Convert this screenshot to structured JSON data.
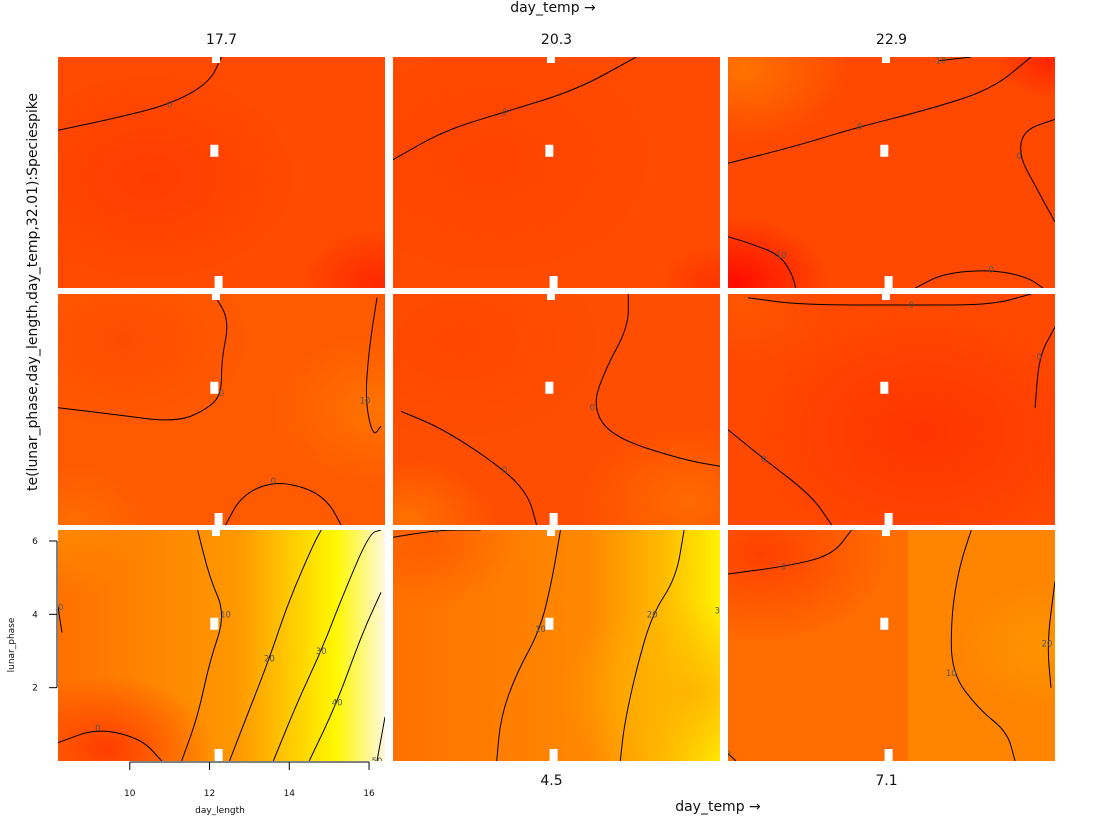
{
  "chart_data": {
    "type": "heatmap",
    "layout": {
      "rows": 3,
      "cols": 3
    },
    "top_axis_label": "day_temp",
    "bottom_axis_label": "day_temp",
    "ylabel_outer": "te(lunar_phase,day_length,day_temp,32.01):Speciespike",
    "top_panel_labels": [
      "17.7",
      "20.3",
      "22.9"
    ],
    "bottom_panel_labels": [
      "",
      "4.5",
      "7.1"
    ],
    "xlabel": "day_length",
    "ylabel": "lunar_phase",
    "xlim": [
      8.2,
      16.4
    ],
    "ylim": [
      0,
      6.3
    ],
    "x_ticks": [
      "10",
      "12",
      "14",
      "16"
    ],
    "y_ticks": [
      "2",
      "4",
      "6"
    ],
    "color_scale": [
      "#ff0000",
      "#ff4a00",
      "#ff8c00",
      "#ffc800",
      "#ffff00",
      "#ffffe0"
    ],
    "panels": [
      {
        "contours": [
          {
            "label": "0",
            "points": [
              [
                8.2,
                4.3
              ],
              [
                9.5,
                4.6
              ],
              [
                11,
                5
              ],
              [
                12,
                5.6
              ],
              [
                12.3,
                6.3
              ]
            ]
          }
        ]
      },
      {
        "contours": [
          {
            "label": "0",
            "points": [
              [
                8.2,
                3.5
              ],
              [
                9.5,
                4.3
              ],
              [
                11,
                4.8
              ],
              [
                12.8,
                5.4
              ],
              [
                14.3,
                6.3
              ]
            ]
          }
        ]
      },
      {
        "contours": [
          {
            "label": "-10",
            "points": [
              [
                13.5,
                6.2
              ],
              [
                14.3,
                6.3
              ]
            ]
          },
          {
            "label": "0",
            "points": [
              [
                8.2,
                3.4
              ],
              [
                10,
                3.9
              ],
              [
                11.5,
                4.4
              ],
              [
                13,
                4.8
              ],
              [
                14.8,
                5.4
              ],
              [
                15.8,
                6.3
              ]
            ]
          },
          {
            "label": "0",
            "points": [
              [
                16.4,
                4.6
              ],
              [
                15.6,
                4.3
              ],
              [
                15.5,
                3.6
              ],
              [
                15.9,
                2.8
              ],
              [
                16.4,
                1.8
              ]
            ]
          },
          {
            "label": "-10",
            "points": [
              [
                8.2,
                1.4
              ],
              [
                8.8,
                1.2
              ],
              [
                9.5,
                0.9
              ],
              [
                9.8,
                0.4
              ],
              [
                9.9,
                0
              ]
            ]
          },
          {
            "label": "0",
            "points": [
              [
                12.9,
                0
              ],
              [
                13.6,
                0.4
              ],
              [
                14.8,
                0.5
              ],
              [
                15.7,
                0.3
              ],
              [
                16.1,
                0
              ]
            ]
          }
        ]
      },
      {
        "contours": [
          {
            "label": "0",
            "points": [
              [
                12.1,
                6.3
              ],
              [
                12.5,
                5.6
              ],
              [
                12.3,
                4.5
              ],
              [
                12.3,
                3.6
              ],
              [
                12,
                3.2
              ],
              [
                11.2,
                2.8
              ],
              [
                9.7,
                3
              ],
              [
                8.2,
                3.2
              ]
            ]
          },
          {
            "label": "10",
            "points": [
              [
                16.2,
                6.2
              ],
              [
                16,
                4.8
              ],
              [
                15.9,
                3.4
              ],
              [
                16.1,
                2.4
              ],
              [
                16.3,
                2.7
              ]
            ]
          },
          {
            "label": "0",
            "points": [
              [
                12.4,
                0
              ],
              [
                12.8,
                0.8
              ],
              [
                13.6,
                1.2
              ],
              [
                14.5,
                1
              ],
              [
                15,
                0.6
              ],
              [
                15.3,
                0
              ]
            ]
          }
        ]
      },
      {
        "contours": [
          {
            "label": "0",
            "points": [
              [
                8.2,
                3
              ]
            ],
            "extra": [
              [
                8.4,
                3.1
              ],
              [
                9.5,
                2.6
              ],
              [
                11,
                1.5
              ],
              [
                11.6,
                0.8
              ],
              [
                11.8,
                0
              ]
            ]
          },
          {
            "label": "0",
            "points": [
              [
                14.1,
                6.3
              ],
              [
                14.1,
                5.4
              ],
              [
                13.5,
                4.2
              ],
              [
                13.2,
                3.2
              ],
              [
                13.7,
                2.4
              ],
              [
                15.4,
                1.8
              ],
              [
                16.4,
                1.6
              ]
            ]
          }
        ]
      },
      {
        "contours": [
          {
            "label": "0",
            "points": [
              [
                8.7,
                6.2
              ],
              [
                10,
                6
              ],
              [
                12.8,
                6
              ],
              [
                14.8,
                6
              ],
              [
                15.8,
                6.3
              ]
            ]
          },
          {
            "label": "0",
            "points": [
              [
                16.4,
                5.4
              ],
              [
                16,
                4.6
              ],
              [
                15.9,
                3.2
              ]
            ]
          },
          {
            "label": "0",
            "points": [
              [
                8.2,
                2.6
              ],
              [
                9.1,
                1.8
              ],
              [
                10.3,
                0.8
              ],
              [
                10.8,
                0
              ]
            ]
          }
        ]
      },
      {
        "contours": [
          {
            "label": "10",
            "points": [
              [
                8.2,
                4.2
              ],
              [
                8.3,
                3.5
              ]
            ]
          },
          {
            "label": "10",
            "points": [
              [
                11.7,
                6.3
              ],
              [
                12,
                5
              ],
              [
                12.4,
                4
              ],
              [
                12,
                2.7
              ],
              [
                11.7,
                1.2
              ],
              [
                11.3,
                0
              ]
            ]
          },
          {
            "label": "20",
            "points": [
              [
                12.5,
                0
              ],
              [
                13,
                1.4
              ],
              [
                13.5,
                2.8
              ],
              [
                14,
                4.4
              ],
              [
                14.6,
                5.9
              ],
              [
                14.8,
                6.3
              ]
            ]
          },
          {
            "label": "30",
            "points": [
              [
                13.6,
                0
              ],
              [
                14.2,
                1.6
              ],
              [
                14.8,
                3
              ],
              [
                15.3,
                4.4
              ],
              [
                16,
                6.2
              ],
              [
                16.3,
                6.3
              ]
            ]
          },
          {
            "label": "40",
            "points": [
              [
                14.5,
                0
              ],
              [
                15.2,
                1.6
              ],
              [
                15.8,
                3.4
              ],
              [
                16.3,
                4.6
              ]
            ]
          },
          {
            "label": "50",
            "points": [
              [
                16.2,
                0
              ],
              [
                16.4,
                1.2
              ]
            ]
          },
          {
            "label": "0",
            "points": [
              [
                8.2,
                0.5
              ],
              [
                9.2,
                0.9
              ],
              [
                10.3,
                0.6
              ],
              [
                10.8,
                0
              ]
            ]
          }
        ]
      },
      {
        "contours": [
          {
            "label": "0",
            "points": [
              [
                8.2,
                6.1
              ],
              [
                9.3,
                6.3
              ],
              [
                10.4,
                6.3
              ]
            ]
          },
          {
            "label": "20",
            "points": [
              [
                15.5,
                6.3
              ],
              [
                15.3,
                5
              ],
              [
                14.7,
                4
              ],
              [
                14.3,
                2.5
              ],
              [
                14,
                1
              ],
              [
                13.9,
                0
              ]
            ]
          },
          {
            "label": "10",
            "points": [
              [
                12.4,
                6.3
              ],
              [
                12.2,
                5
              ],
              [
                11.9,
                3.6
              ],
              [
                11.3,
                2.4
              ],
              [
                10.9,
                1.2
              ],
              [
                10.8,
                0
              ]
            ]
          },
          {
            "label": "30",
            "points": [
              [
                16.4,
                4.1
              ]
            ]
          }
        ]
      },
      {
        "contours": [
          {
            "label": "0",
            "points": [
              [
                8.2,
                5.1
              ],
              [
                9.6,
                5.3
              ],
              [
                10.8,
                5.6
              ],
              [
                11.3,
                6.3
              ]
            ]
          },
          {
            "label": "20",
            "points": [
              [
                16.4,
                4.9
              ],
              [
                16.2,
                3.2
              ],
              [
                16.3,
                2
              ]
            ]
          },
          {
            "label": "10",
            "points": [
              [
                14.3,
                6.3
              ],
              [
                14,
                5.3
              ],
              [
                13.8,
                4
              ],
              [
                13.8,
                2.4
              ],
              [
                14.5,
                1.4
              ],
              [
                15.2,
                0.8
              ],
              [
                15.4,
                0
              ]
            ]
          },
          {
            "label": "0",
            "points": [
              [
                8.2,
                0.2
              ],
              [
                8.4,
                0
              ]
            ]
          }
        ]
      }
    ]
  }
}
